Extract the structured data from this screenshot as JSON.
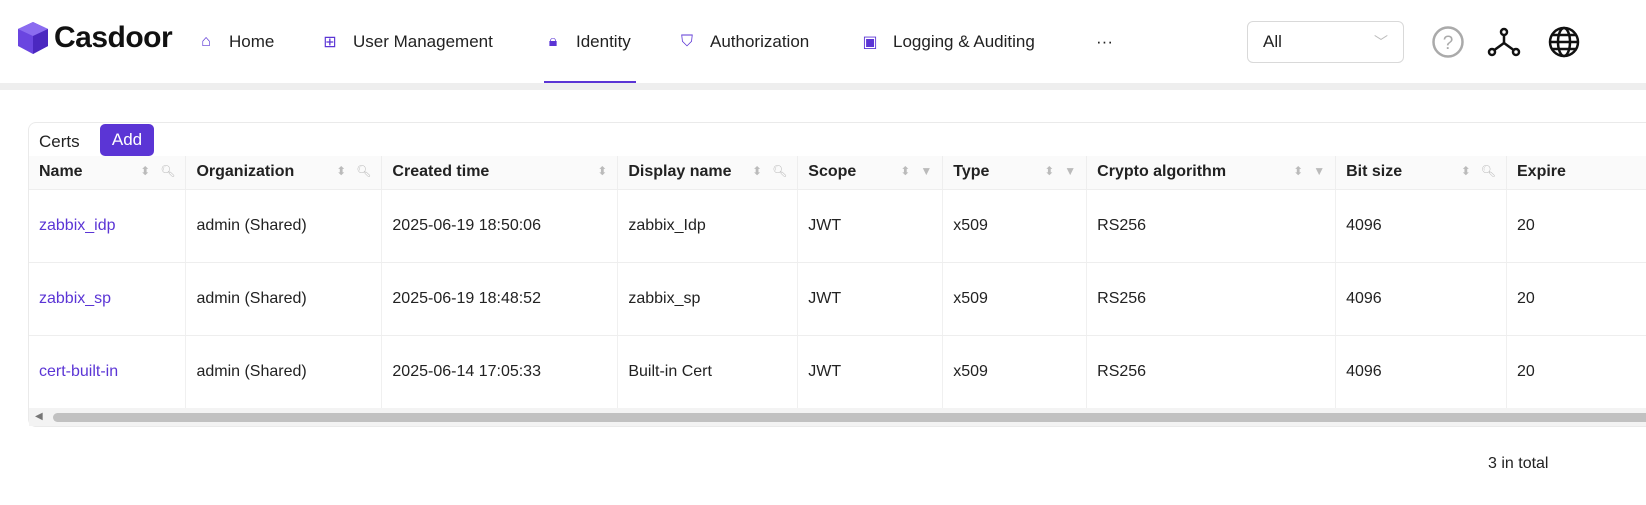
{
  "brand": {
    "name": "Casdoor",
    "accent": "#5b35d5"
  },
  "nav": [
    {
      "label": "Home",
      "icon": "home-icon"
    },
    {
      "label": "User Management",
      "icon": "grid-icon"
    },
    {
      "label": "Identity",
      "icon": "lock-icon",
      "active": true
    },
    {
      "label": "Authorization",
      "icon": "shield-check-icon"
    },
    {
      "label": "Logging & Auditing",
      "icon": "wallet-icon"
    },
    {
      "label": "···"
    }
  ],
  "org_select": {
    "value": "All"
  },
  "card": {
    "title": "Certs",
    "add_label": "Add"
  },
  "table": {
    "columns": [
      "Name",
      "Organization",
      "Created time",
      "Display name",
      "Scope",
      "Type",
      "Crypto algorithm",
      "Bit size",
      "Expire"
    ],
    "rows": [
      [
        "zabbix_idp",
        "admin (Shared)",
        "2025-06-19 18:50:06",
        "zabbix_Idp",
        "JWT",
        "x509",
        "RS256",
        "4096",
        "20"
      ],
      [
        "zabbix_sp",
        "admin (Shared)",
        "2025-06-19 18:48:52",
        "zabbix_sp",
        "JWT",
        "x509",
        "RS256",
        "4096",
        "20"
      ],
      [
        "cert-built-in",
        "admin (Shared)",
        "2025-06-14 17:05:33",
        "Built-in Cert",
        "JWT",
        "x509",
        "RS256",
        "4096",
        "20"
      ]
    ]
  },
  "pagination": {
    "total_text": "3 in total"
  }
}
